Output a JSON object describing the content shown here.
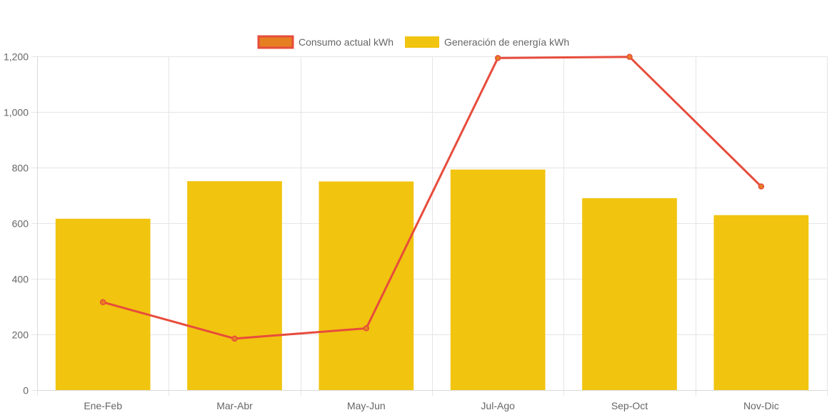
{
  "chart_data": {
    "type": "bar",
    "categories": [
      "Ene-Feb",
      "Mar-Abr",
      "May-Jun",
      "Jul-Ago",
      "Sep-Oct",
      "Nov-Dic"
    ],
    "series": [
      {
        "name": "Consumo actual kWh",
        "type": "line",
        "values": [
          316,
          185,
          222,
          1194,
          1198,
          732
        ],
        "color": "#e74c3c",
        "legend_fill": "#e67e22"
      },
      {
        "name": "Generación de energía kWh",
        "type": "bar",
        "values": [
          616,
          751,
          750,
          793,
          690,
          629
        ],
        "color": "#f1c40f"
      }
    ],
    "ylim": [
      0,
      1200
    ],
    "yticks": [
      0,
      200,
      400,
      600,
      800,
      1000,
      1200
    ],
    "ytick_labels": [
      "0",
      "200",
      "400",
      "600",
      "800",
      "1,000",
      "1,200"
    ],
    "grid": true,
    "legend_position": "top-center"
  }
}
